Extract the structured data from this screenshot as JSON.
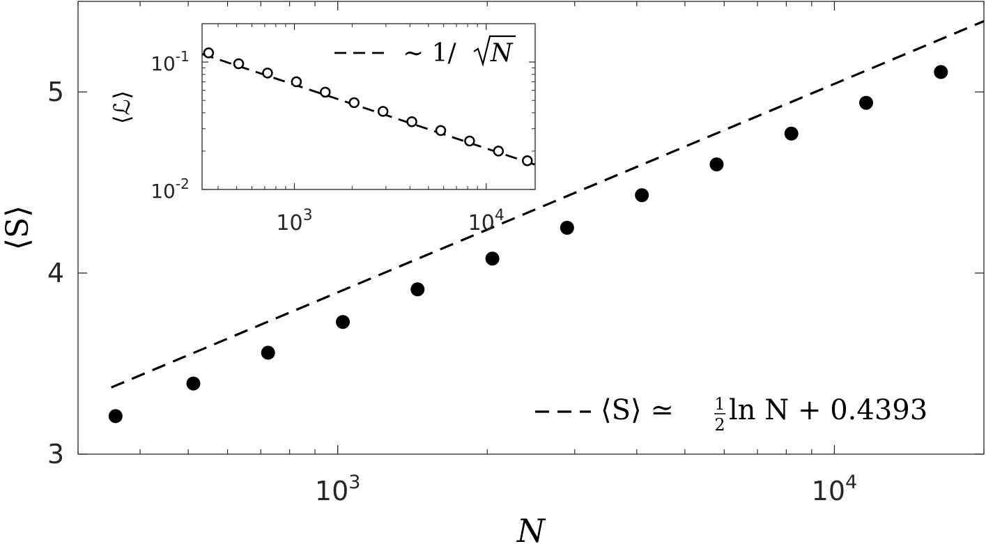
{
  "chart_data": [
    {
      "id": "main",
      "type": "scatter",
      "xscale": "log",
      "xlim": [
        300,
        20000
      ],
      "ylim": [
        3,
        5.5
      ],
      "xlabel": "N",
      "ylabel": "⟨S⟩",
      "xticks": [
        1000,
        10000
      ],
      "xtick_labels": [
        {
          "base": "10",
          "exp": "3"
        },
        {
          "base": "10",
          "exp": "4"
        }
      ],
      "yticks": [
        3,
        4,
        5
      ],
      "ytick_labels": [
        "3",
        "4",
        "5"
      ],
      "grid": false,
      "legend_position": "bottom-right",
      "series": [
        {
          "name": "",
          "type": "scatter",
          "marker": "filled-circle",
          "x": [
            357,
            512,
            724,
            1024,
            1448,
            2048,
            2896,
            4096,
            5793,
            8192,
            11585,
            16384
          ],
          "y": [
            3.21,
            3.39,
            3.56,
            3.73,
            3.91,
            4.08,
            4.25,
            4.43,
            4.6,
            4.77,
            4.94,
            5.11
          ]
        },
        {
          "name": "⟨S⟩ ≃ ½ ln N + 0.4393",
          "type": "line",
          "style": "dashed",
          "formula": "0.5*ln(N)+0.4393",
          "legend": {
            "part1": "⟨S⟩ ≃ ",
            "frac_num": "1",
            "frac_den": "2",
            "part2": " ln N + 0.4393"
          }
        }
      ]
    },
    {
      "id": "inset",
      "type": "scatter",
      "xscale": "log",
      "yscale": "log",
      "xlim": [
        330,
        18000
      ],
      "ylim": [
        0.01,
        0.2
      ],
      "ylabel": "⟨ℒ⟩",
      "xticks": [
        1000,
        10000
      ],
      "xtick_labels": [
        {
          "base": "10",
          "exp": "3"
        },
        {
          "base": "10",
          "exp": "4"
        }
      ],
      "yticks": [
        0.01,
        0.1
      ],
      "ytick_labels": [
        {
          "base": "10",
          "exp": "-2"
        },
        {
          "base": "10",
          "exp": "-1"
        }
      ],
      "grid": false,
      "legend_position": "top-right",
      "series": [
        {
          "name": "",
          "type": "scatter",
          "marker": "open-circle",
          "x": [
            357,
            512,
            724,
            1024,
            1448,
            2048,
            2896,
            4096,
            5793,
            8192,
            11585,
            16384
          ],
          "y": [
            0.118,
            0.097,
            0.082,
            0.07,
            0.058,
            0.048,
            0.041,
            0.034,
            0.029,
            0.024,
            0.02,
            0.0168
          ]
        },
        {
          "name": "∼ 1/√N",
          "type": "line",
          "style": "dashed",
          "formula": "2.1/sqrt(N)",
          "legend": {
            "prefix": "∼ 1/",
            "radicand": "N"
          }
        }
      ]
    }
  ]
}
